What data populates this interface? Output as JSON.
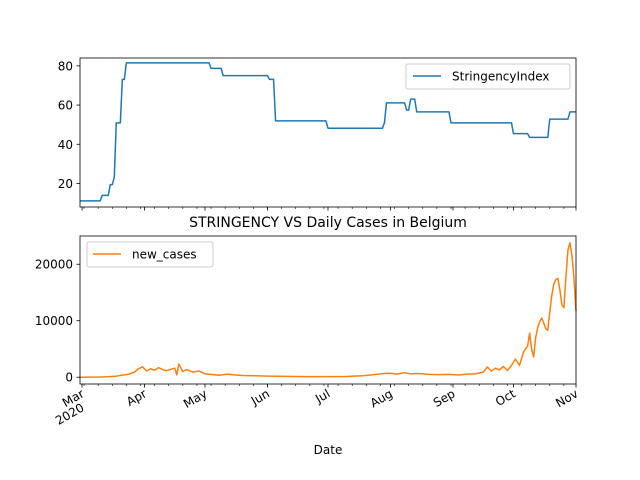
{
  "chart_data": [
    {
      "type": "line",
      "title": "",
      "xlabel": "",
      "ylabel": "",
      "x_range": [
        "2020-02-29",
        "2020-11-01"
      ],
      "ylim": [
        8,
        84
      ],
      "yticks": [
        20,
        40,
        60,
        80
      ],
      "grid": false,
      "legend_position": "top-right",
      "series": [
        {
          "name": "StringencyIndex",
          "color": "#1f77b4",
          "points": [
            [
              "2020-02-29",
              11.1
            ],
            [
              "2020-03-10",
              11.1
            ],
            [
              "2020-03-11",
              13.9
            ],
            [
              "2020-03-14",
              13.9
            ],
            [
              "2020-03-15",
              19.4
            ],
            [
              "2020-03-16",
              19.4
            ],
            [
              "2020-03-17",
              23.1
            ],
            [
              "2020-03-18",
              50.9
            ],
            [
              "2020-03-20",
              50.9
            ],
            [
              "2020-03-21",
              73.1
            ],
            [
              "2020-03-22",
              73.1
            ],
            [
              "2020-03-23",
              81.5
            ],
            [
              "2020-05-03",
              81.5
            ],
            [
              "2020-05-04",
              78.7
            ],
            [
              "2020-05-09",
              78.7
            ],
            [
              "2020-05-10",
              75.0
            ],
            [
              "2020-06-01",
              75.0
            ],
            [
              "2020-06-02",
              73.1
            ],
            [
              "2020-06-04",
              73.1
            ],
            [
              "2020-06-05",
              51.9
            ],
            [
              "2020-06-30",
              51.9
            ],
            [
              "2020-07-01",
              48.2
            ],
            [
              "2020-07-28",
              48.2
            ],
            [
              "2020-07-29",
              50.9
            ],
            [
              "2020-07-30",
              61.1
            ],
            [
              "2020-08-08",
              61.1
            ],
            [
              "2020-08-09",
              57.4
            ],
            [
              "2020-08-10",
              57.4
            ],
            [
              "2020-08-11",
              63.0
            ],
            [
              "2020-08-13",
              63.0
            ],
            [
              "2020-08-14",
              56.5
            ],
            [
              "2020-08-30",
              56.5
            ],
            [
              "2020-08-31",
              50.9
            ],
            [
              "2020-09-30",
              50.9
            ],
            [
              "2020-10-01",
              45.4
            ],
            [
              "2020-10-08",
              45.4
            ],
            [
              "2020-10-09",
              43.5
            ],
            [
              "2020-10-18",
              43.5
            ],
            [
              "2020-10-19",
              52.8
            ],
            [
              "2020-10-28",
              52.8
            ],
            [
              "2020-10-29",
              56.5
            ],
            [
              "2020-11-01",
              56.5
            ]
          ]
        }
      ]
    },
    {
      "type": "line",
      "title": "STRINGENCY VS Daily Cases in Belgium",
      "xlabel": "Date",
      "ylabel": "",
      "x_range": [
        "2020-02-29",
        "2020-11-01"
      ],
      "ylim": [
        -1200,
        25000
      ],
      "yticks": [
        0,
        10000,
        20000
      ],
      "grid": false,
      "legend_position": "top-left",
      "xticks": [
        {
          "date": "2020-03-01",
          "label": "Mar",
          "sublabel": "2020"
        },
        {
          "date": "2020-04-01",
          "label": "Apr",
          "sublabel": ""
        },
        {
          "date": "2020-05-01",
          "label": "May",
          "sublabel": ""
        },
        {
          "date": "2020-06-01",
          "label": "Jun",
          "sublabel": ""
        },
        {
          "date": "2020-07-01",
          "label": "Jul",
          "sublabel": ""
        },
        {
          "date": "2020-08-01",
          "label": "Aug",
          "sublabel": ""
        },
        {
          "date": "2020-09-01",
          "label": "Sep",
          "sublabel": ""
        },
        {
          "date": "2020-10-01",
          "label": "Oct",
          "sublabel": ""
        },
        {
          "date": "2020-11-01",
          "label": "Nov",
          "sublabel": ""
        }
      ],
      "series": [
        {
          "name": "new_cases",
          "color": "#ff7f0e",
          "points": [
            [
              "2020-02-29",
              0
            ],
            [
              "2020-03-05",
              10
            ],
            [
              "2020-03-10",
              30
            ],
            [
              "2020-03-14",
              80
            ],
            [
              "2020-03-18",
              180
            ],
            [
              "2020-03-21",
              380
            ],
            [
              "2020-03-24",
              520
            ],
            [
              "2020-03-27",
              900
            ],
            [
              "2020-03-29",
              1500
            ],
            [
              "2020-03-31",
              1850
            ],
            [
              "2020-04-02",
              1100
            ],
            [
              "2020-04-04",
              1500
            ],
            [
              "2020-04-06",
              1250
            ],
            [
              "2020-04-08",
              1700
            ],
            [
              "2020-04-10",
              1350
            ],
            [
              "2020-04-12",
              1150
            ],
            [
              "2020-04-14",
              1400
            ],
            [
              "2020-04-16",
              1600
            ],
            [
              "2020-04-17",
              400
            ],
            [
              "2020-04-18",
              2350
            ],
            [
              "2020-04-20",
              1000
            ],
            [
              "2020-04-22",
              1350
            ],
            [
              "2020-04-25",
              900
            ],
            [
              "2020-04-28",
              1100
            ],
            [
              "2020-05-01",
              600
            ],
            [
              "2020-05-05",
              450
            ],
            [
              "2020-05-08",
              350
            ],
            [
              "2020-05-12",
              550
            ],
            [
              "2020-05-16",
              400
            ],
            [
              "2020-05-20",
              300
            ],
            [
              "2020-05-26",
              250
            ],
            [
              "2020-06-01",
              200
            ],
            [
              "2020-06-10",
              150
            ],
            [
              "2020-06-20",
              100
            ],
            [
              "2020-07-01",
              100
            ],
            [
              "2020-07-10",
              120
            ],
            [
              "2020-07-18",
              250
            ],
            [
              "2020-07-22",
              400
            ],
            [
              "2020-07-26",
              550
            ],
            [
              "2020-07-29",
              650
            ],
            [
              "2020-08-01",
              700
            ],
            [
              "2020-08-04",
              550
            ],
            [
              "2020-08-08",
              800
            ],
            [
              "2020-08-11",
              600
            ],
            [
              "2020-08-15",
              650
            ],
            [
              "2020-08-20",
              500
            ],
            [
              "2020-08-25",
              450
            ],
            [
              "2020-08-30",
              500
            ],
            [
              "2020-09-04",
              400
            ],
            [
              "2020-09-08",
              550
            ],
            [
              "2020-09-12",
              600
            ],
            [
              "2020-09-16",
              900
            ],
            [
              "2020-09-18",
              1800
            ],
            [
              "2020-09-20",
              1100
            ],
            [
              "2020-09-22",
              1600
            ],
            [
              "2020-09-24",
              1300
            ],
            [
              "2020-09-26",
              1900
            ],
            [
              "2020-09-28",
              1200
            ],
            [
              "2020-09-30",
              2100
            ],
            [
              "2020-10-02",
              3200
            ],
            [
              "2020-10-04",
              2100
            ],
            [
              "2020-10-06",
              4500
            ],
            [
              "2020-10-08",
              5500
            ],
            [
              "2020-10-09",
              7800
            ],
            [
              "2020-10-10",
              5000
            ],
            [
              "2020-10-11",
              3600
            ],
            [
              "2020-10-12",
              7000
            ],
            [
              "2020-10-13",
              8800
            ],
            [
              "2020-10-14",
              9800
            ],
            [
              "2020-10-15",
              10500
            ],
            [
              "2020-10-16",
              9600
            ],
            [
              "2020-10-17",
              8600
            ],
            [
              "2020-10-18",
              8300
            ],
            [
              "2020-10-19",
              11500
            ],
            [
              "2020-10-20",
              14500
            ],
            [
              "2020-10-21",
              16500
            ],
            [
              "2020-10-22",
              17300
            ],
            [
              "2020-10-23",
              17500
            ],
            [
              "2020-10-24",
              15500
            ],
            [
              "2020-10-25",
              12800
            ],
            [
              "2020-10-26",
              12300
            ],
            [
              "2020-10-27",
              17800
            ],
            [
              "2020-10-28",
              22500
            ],
            [
              "2020-10-29",
              23800
            ],
            [
              "2020-10-30",
              21500
            ],
            [
              "2020-10-31",
              17500
            ],
            [
              "2020-11-01",
              11700
            ]
          ]
        }
      ]
    }
  ]
}
